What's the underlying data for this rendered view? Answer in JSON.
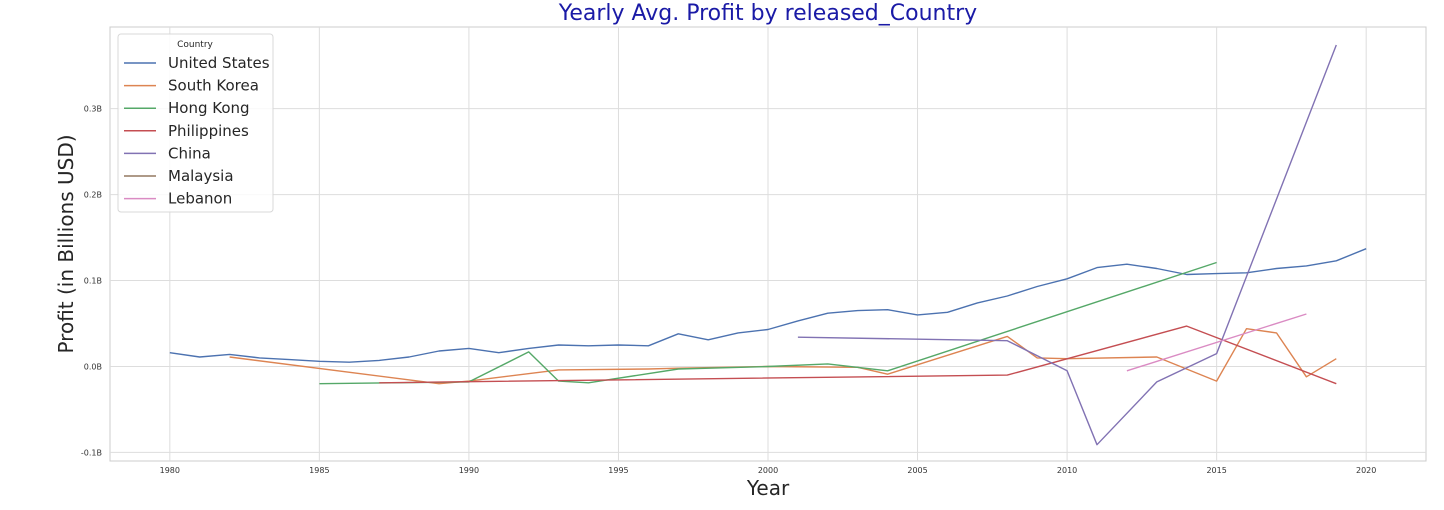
{
  "chart_data": {
    "type": "line",
    "title": "Yearly Avg. Profit by released_Country",
    "xlabel": "Year",
    "ylabel": "Profit (in Billions USD)",
    "xlim": [
      1978,
      2022
    ],
    "ylim": [
      -0.11,
      0.395
    ],
    "x_ticks": [
      1980,
      1985,
      1990,
      1995,
      2000,
      2005,
      2010,
      2015,
      2020
    ],
    "y_ticks": [
      -0.1,
      0.0,
      0.1,
      0.2,
      0.3
    ],
    "y_tick_labels": [
      "-0.1B",
      "0.0B",
      "0.1B",
      "0.2B",
      "0.3B"
    ],
    "grid": true,
    "legend": {
      "title": "Country",
      "placement": "top-left"
    },
    "series": [
      {
        "name": "United States",
        "color": "#4c72b0",
        "x": [
          1980,
          1981,
          1982,
          1983,
          1984,
          1985,
          1986,
          1987,
          1988,
          1989,
          1990,
          1991,
          1992,
          1993,
          1994,
          1995,
          1996,
          1997,
          1998,
          1999,
          2000,
          2001,
          2002,
          2003,
          2004,
          2005,
          2006,
          2007,
          2008,
          2009,
          2010,
          2011,
          2012,
          2013,
          2014,
          2015,
          2016,
          2017,
          2018,
          2019,
          2020
        ],
        "y": [
          0.016,
          0.011,
          0.014,
          0.01,
          0.008,
          0.006,
          0.005,
          0.007,
          0.011,
          0.018,
          0.021,
          0.016,
          0.021,
          0.025,
          0.024,
          0.025,
          0.024,
          0.038,
          0.031,
          0.039,
          0.043,
          0.053,
          0.062,
          0.065,
          0.066,
          0.06,
          0.063,
          0.074,
          0.082,
          0.093,
          0.102,
          0.115,
          0.119,
          0.114,
          0.107,
          0.108,
          0.109,
          0.114,
          0.117,
          0.123,
          0.137
        ]
      },
      {
        "name": "South Korea",
        "color": "#dd8452",
        "x": [
          1982,
          1989,
          1990,
          1993,
          1996,
          1997,
          2000,
          2003,
          2004,
          2008,
          2009,
          2010,
          2013,
          2015,
          2016,
          2017,
          2018,
          2019
        ],
        "y": [
          0.011,
          -0.02,
          -0.017,
          -0.004,
          -0.003,
          -0.002,
          0.0,
          -0.001,
          -0.009,
          0.035,
          0.01,
          0.009,
          0.011,
          -0.017,
          0.044,
          0.039,
          -0.012,
          0.009
        ]
      },
      {
        "name": "Hong Kong",
        "color": "#55a868",
        "x": [
          1985,
          1990,
          1992,
          1993,
          1994,
          1997,
          2000,
          2002,
          2004,
          2015
        ],
        "y": [
          -0.02,
          -0.018,
          0.017,
          -0.017,
          -0.019,
          -0.003,
          0.0,
          0.003,
          -0.005,
          0.121
        ]
      },
      {
        "name": "Philippines",
        "color": "#c44e52",
        "x": [
          1987,
          2008,
          2014,
          2019
        ],
        "y": [
          -0.019,
          -0.01,
          0.047,
          -0.02
        ]
      },
      {
        "name": "China",
        "color": "#8172b3",
        "x": [
          2001,
          2008,
          2010,
          2011,
          2013,
          2015,
          2019
        ],
        "y": [
          0.034,
          0.03,
          -0.005,
          -0.091,
          -0.018,
          0.015,
          0.374
        ]
      },
      {
        "name": "Malaysia",
        "color": "#937860",
        "x": [],
        "y": []
      },
      {
        "name": "Lebanon",
        "color": "#da8bc3",
        "x": [
          2012,
          2018
        ],
        "y": [
          -0.005,
          0.061
        ]
      }
    ]
  }
}
